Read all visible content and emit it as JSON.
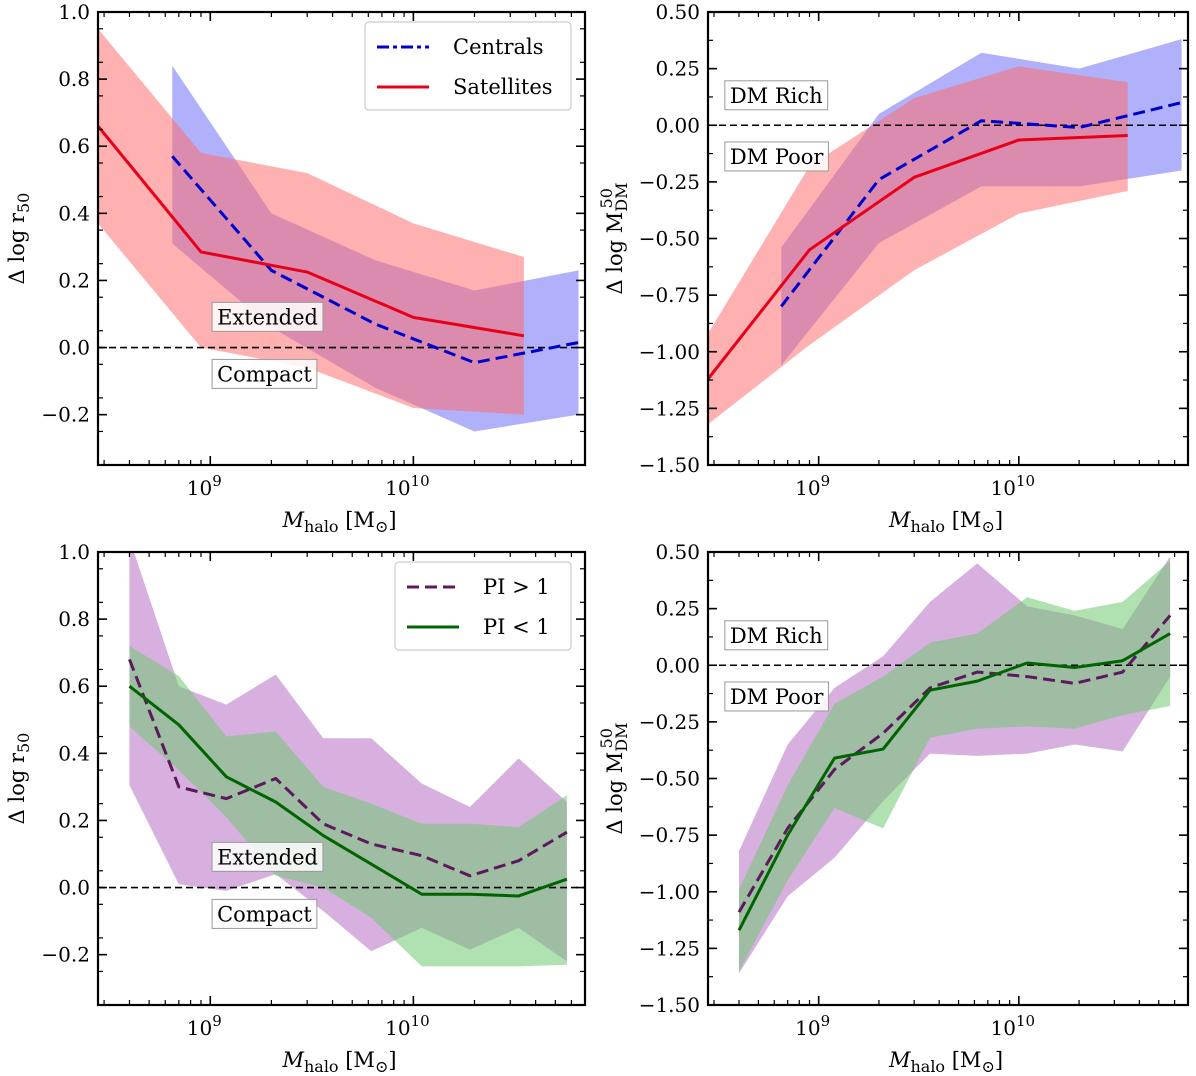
{
  "chart_data": [
    {
      "id": "top-left",
      "type": "line",
      "x_scale": "log",
      "xlim": [
        280000000.0,
        70000000000.0
      ],
      "ylim": [
        -0.35,
        1.0
      ],
      "y_ticks": [
        -0.2,
        0.0,
        0.2,
        0.4,
        0.6,
        0.8,
        1.0
      ],
      "y_tick_labels": [
        "−0.2",
        "0.0",
        "0.2",
        "0.4",
        "0.6",
        "0.8",
        "1.0"
      ],
      "x_ticks": [
        1000000000.0,
        10000000000.0
      ],
      "x_tick_labels": [
        {
          "base": "10",
          "exp": "9"
        },
        {
          "base": "10",
          "exp": "10"
        }
      ],
      "xlabel": {
        "main": "M",
        "sub": "halo",
        "unit_open": " [M",
        "unit_sub": "⊙",
        "unit_close": "]"
      },
      "ylabel": {
        "text": "Δ log r",
        "sub": "50",
        "sup": ""
      },
      "reference_line": 0.0,
      "annotations": [
        {
          "text": "Extended",
          "x": 1080000000.0,
          "y": 0.09
        },
        {
          "text": "Compact",
          "x": 1080000000.0,
          "y": -0.08
        }
      ],
      "legend": {
        "position": "top-right",
        "entries": [
          "Centrals",
          "Satellites"
        ]
      },
      "series": [
        {
          "name": "Centrals",
          "color": "#0000cc",
          "fill": "#6f6ff7",
          "fill_opacity": 0.55,
          "dash": "12,6",
          "legend_dash": "12,4,4,4",
          "x": [
            650000000.0,
            2000000000.0,
            6500000000.0,
            20000000000.0,
            65000000000.0
          ],
          "y": [
            0.57,
            0.23,
            0.07,
            -0.045,
            0.015
          ],
          "upper": [
            0.84,
            0.4,
            0.26,
            0.17,
            0.23
          ],
          "lower": [
            0.31,
            0.06,
            -0.12,
            -0.25,
            -0.2
          ]
        },
        {
          "name": "Satellites",
          "color": "#e8001a",
          "fill": "#ff7070",
          "fill_opacity": 0.55,
          "dash": "",
          "x": [
            280000000.0,
            900000000.0,
            3000000000.0,
            10000000000.0,
            35000000000.0
          ],
          "y": [
            0.66,
            0.285,
            0.225,
            0.09,
            0.035
          ],
          "upper": [
            0.95,
            0.58,
            0.52,
            0.37,
            0.27
          ],
          "lower": [
            0.37,
            0.0,
            -0.06,
            -0.18,
            -0.2
          ]
        }
      ]
    },
    {
      "id": "top-right",
      "type": "line",
      "x_scale": "log",
      "xlim": [
        280000000.0,
        70000000000.0
      ],
      "ylim": [
        -1.5,
        0.5
      ],
      "y_ticks": [
        -1.5,
        -1.25,
        -1.0,
        -0.75,
        -0.5,
        -0.25,
        0.0,
        0.25,
        0.5
      ],
      "y_tick_labels": [
        "−1.50",
        "−1.25",
        "−1.00",
        "−0.75",
        "−0.50",
        "−0.25",
        "0.00",
        "0.25",
        "0.50"
      ],
      "x_ticks": [
        1000000000.0,
        10000000000.0
      ],
      "x_tick_labels": [
        {
          "base": "10",
          "exp": "9"
        },
        {
          "base": "10",
          "exp": "10"
        }
      ],
      "xlabel": {
        "main": "M",
        "sub": "halo",
        "unit_open": " [M",
        "unit_sub": "⊙",
        "unit_close": "]"
      },
      "ylabel": {
        "text": "Δ log M",
        "sub": "DM",
        "sup": "50"
      },
      "reference_line": 0.0,
      "annotations": [
        {
          "text": "DM Rich",
          "x": 360000000.0,
          "y": 0.13
        },
        {
          "text": "DM Poor",
          "x": 360000000.0,
          "y": -0.14
        }
      ],
      "legend": null,
      "series": [
        {
          "name": "Centrals",
          "color": "#0000cc",
          "fill": "#6f6ff7",
          "fill_opacity": 0.55,
          "dash": "12,6",
          "x": [
            650000000.0,
            2000000000.0,
            6500000000.0,
            20000000000.0,
            65000000000.0
          ],
          "y": [
            -0.8,
            -0.24,
            0.02,
            -0.01,
            0.1
          ],
          "upper": [
            -0.54,
            0.05,
            0.32,
            0.25,
            0.38
          ],
          "lower": [
            -1.06,
            -0.52,
            -0.27,
            -0.27,
            -0.2
          ]
        },
        {
          "name": "Satellites",
          "color": "#e8001a",
          "fill": "#ff7070",
          "fill_opacity": 0.55,
          "dash": "",
          "x": [
            280000000.0,
            900000000.0,
            3000000000.0,
            10000000000.0,
            35000000000.0
          ],
          "y": [
            -1.12,
            -0.55,
            -0.23,
            -0.065,
            -0.045
          ],
          "upper": [
            -0.92,
            -0.18,
            0.12,
            0.26,
            0.19
          ],
          "lower": [
            -1.32,
            -0.97,
            -0.64,
            -0.39,
            -0.29
          ]
        }
      ]
    },
    {
      "id": "bottom-left",
      "type": "line",
      "x_scale": "log",
      "xlim": [
        280000000.0,
        70000000000.0
      ],
      "ylim": [
        -0.35,
        1.0
      ],
      "y_ticks": [
        -0.2,
        0.0,
        0.2,
        0.4,
        0.6,
        0.8,
        1.0
      ],
      "y_tick_labels": [
        "−0.2",
        "0.0",
        "0.2",
        "0.4",
        "0.6",
        "0.8",
        "1.0"
      ],
      "x_ticks": [
        1000000000.0,
        10000000000.0
      ],
      "x_tick_labels": [
        {
          "base": "10",
          "exp": "9"
        },
        {
          "base": "10",
          "exp": "10"
        }
      ],
      "xlabel": {
        "main": "M",
        "sub": "halo",
        "unit_open": " [M",
        "unit_sub": "⊙",
        "unit_close": "]"
      },
      "ylabel": {
        "text": "Δ log r",
        "sub": "50",
        "sup": ""
      },
      "reference_line": 0.0,
      "annotations": [
        {
          "text": "Extended",
          "x": 1080000000.0,
          "y": 0.09
        },
        {
          "text": "Compact",
          "x": 1080000000.0,
          "y": -0.08
        }
      ],
      "legend": {
        "position": "top-right",
        "entries": [
          "PI > 1",
          "PI < 1"
        ]
      },
      "series": [
        {
          "name": "PI > 1",
          "color": "#5c1a5c",
          "fill": "#b770c4",
          "fill_opacity": 0.55,
          "dash": "12,6",
          "x": [
            400000000.0,
            700000000.0,
            1200000000.0,
            2100000000.0,
            3600000000.0,
            6200000000.0,
            11000000000.0,
            19000000000.0,
            33000000000.0,
            57000000000.0
          ],
          "y": [
            0.68,
            0.3,
            0.265,
            0.325,
            0.19,
            0.13,
            0.095,
            0.035,
            0.08,
            0.165
          ],
          "upper": [
            1.04,
            0.6,
            0.545,
            0.635,
            0.445,
            0.445,
            0.31,
            0.24,
            0.385,
            0.255
          ],
          "lower": [
            0.305,
            0.01,
            -0.01,
            0.04,
            -0.07,
            -0.19,
            -0.12,
            -0.185,
            -0.12,
            -0.22
          ]
        },
        {
          "name": "PI < 1",
          "color": "#006400",
          "fill": "#6fc86f",
          "fill_opacity": 0.55,
          "dash": "",
          "x": [
            400000000.0,
            700000000.0,
            1200000000.0,
            2100000000.0,
            3600000000.0,
            6200000000.0,
            11000000000.0,
            19000000000.0,
            33000000000.0,
            57000000000.0
          ],
          "y": [
            0.6,
            0.485,
            0.33,
            0.255,
            0.155,
            0.07,
            -0.02,
            -0.02,
            -0.025,
            0.025
          ],
          "upper": [
            0.72,
            0.63,
            0.45,
            0.465,
            0.3,
            0.25,
            0.19,
            0.19,
            0.18,
            0.275
          ],
          "lower": [
            0.48,
            0.35,
            0.21,
            0.035,
            0.0,
            -0.09,
            -0.235,
            -0.235,
            -0.235,
            -0.23
          ]
        }
      ]
    },
    {
      "id": "bottom-right",
      "type": "line",
      "x_scale": "log",
      "xlim": [
        280000000.0,
        70000000000.0
      ],
      "ylim": [
        -1.5,
        0.5
      ],
      "y_ticks": [
        -1.5,
        -1.25,
        -1.0,
        -0.75,
        -0.5,
        -0.25,
        0.0,
        0.25,
        0.5
      ],
      "y_tick_labels": [
        "−1.50",
        "−1.25",
        "−1.00",
        "−0.75",
        "−0.50",
        "−0.25",
        "0.00",
        "0.25",
        "0.50"
      ],
      "x_ticks": [
        1000000000.0,
        10000000000.0
      ],
      "x_tick_labels": [
        {
          "base": "10",
          "exp": "9"
        },
        {
          "base": "10",
          "exp": "10"
        }
      ],
      "xlabel": {
        "main": "M",
        "sub": "halo",
        "unit_open": " [M",
        "unit_sub": "⊙",
        "unit_close": "]"
      },
      "ylabel": {
        "text": "Δ log M",
        "sub": "DM",
        "sup": "50"
      },
      "reference_line": 0.0,
      "annotations": [
        {
          "text": "DM Rich",
          "x": 360000000.0,
          "y": 0.13
        },
        {
          "text": "DM Poor",
          "x": 360000000.0,
          "y": -0.14
        }
      ],
      "legend": null,
      "series": [
        {
          "name": "PI > 1",
          "color": "#5c1a5c",
          "fill": "#b770c4",
          "fill_opacity": 0.55,
          "dash": "12,6",
          "x": [
            400000000.0,
            700000000.0,
            1200000000.0,
            2100000000.0,
            3600000000.0,
            6200000000.0,
            11000000000.0,
            19000000000.0,
            33000000000.0,
            57000000000.0
          ],
          "y": [
            -1.09,
            -0.72,
            -0.46,
            -0.3,
            -0.1,
            -0.03,
            -0.05,
            -0.08,
            -0.03,
            0.22
          ],
          "upper": [
            -0.82,
            -0.35,
            -0.1,
            0.04,
            0.28,
            0.45,
            0.26,
            0.22,
            0.16,
            0.48
          ],
          "lower": [
            -1.36,
            -1.02,
            -0.85,
            -0.6,
            -0.39,
            -0.4,
            -0.39,
            -0.35,
            -0.38,
            -0.05
          ]
        },
        {
          "name": "PI < 1",
          "color": "#006400",
          "fill": "#6fc86f",
          "fill_opacity": 0.55,
          "dash": "",
          "x": [
            400000000.0,
            700000000.0,
            1200000000.0,
            2100000000.0,
            3600000000.0,
            6200000000.0,
            11000000000.0,
            19000000000.0,
            33000000000.0,
            57000000000.0
          ],
          "y": [
            -1.17,
            -0.75,
            -0.41,
            -0.37,
            -0.11,
            -0.07,
            0.01,
            -0.01,
            0.02,
            0.14
          ],
          "upper": [
            -0.99,
            -0.53,
            -0.17,
            -0.05,
            0.1,
            0.14,
            0.3,
            0.24,
            0.28,
            0.46
          ],
          "lower": [
            -1.35,
            -0.95,
            -0.63,
            -0.72,
            -0.32,
            -0.28,
            -0.27,
            -0.28,
            -0.22,
            -0.18
          ]
        }
      ]
    }
  ]
}
